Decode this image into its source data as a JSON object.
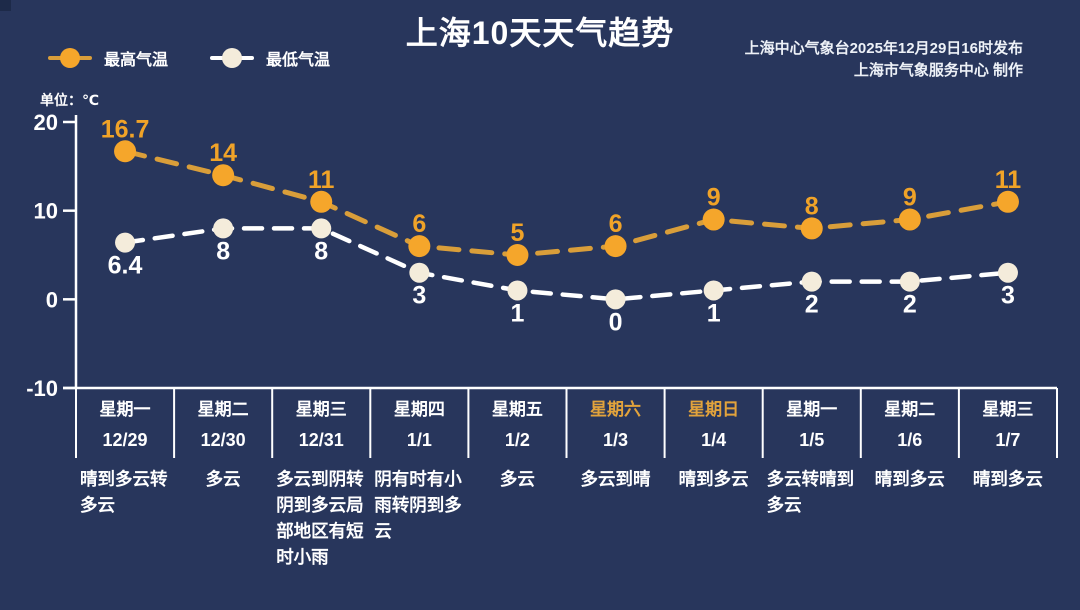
{
  "header": {
    "title": "上海10天天气趋势",
    "source_line1": "上海中心气象台2025年12月29日16时发布",
    "source_line2": "上海市气象服务中心  制作",
    "unit_label": "单位：℃",
    "legend": [
      {
        "label": "最高气温",
        "color": "#F5A62B"
      },
      {
        "label": "最低气温",
        "color": "#F4ECDB"
      }
    ]
  },
  "chart_data": {
    "type": "line",
    "title": "上海10天天气趋势",
    "categories": [
      "12/29",
      "12/30",
      "12/31",
      "1/1",
      "1/2",
      "1/3",
      "1/4",
      "1/5",
      "1/6",
      "1/7"
    ],
    "series": [
      {
        "name": "最高气温",
        "values": [
          16.7,
          14,
          11,
          6,
          5,
          6,
          9,
          8,
          9,
          11
        ],
        "dot_color": "#F5A62B",
        "line_color": "#D99E3A",
        "label_color": "#F0A328"
      },
      {
        "name": "最低气温",
        "values": [
          6.4,
          8,
          8,
          3,
          1,
          0,
          1,
          2,
          2,
          3
        ],
        "dot_color": "#F4ECDB",
        "line_color": "#FFFFFF",
        "label_color": "#FFFFFF"
      }
    ],
    "ylabel": "单位：℃",
    "yticks": [
      20,
      10,
      0,
      -10
    ],
    "ylim": [
      -10,
      20
    ],
    "grid": false,
    "line_style": "dashed",
    "legend_position": "top-left"
  },
  "forecast": {
    "columns": [
      {
        "day": "星期一",
        "date": "12/29",
        "weather": "晴到多云转多云",
        "highlight": false
      },
      {
        "day": "星期二",
        "date": "12/30",
        "weather": "多云",
        "highlight": false
      },
      {
        "day": "星期三",
        "date": "12/31",
        "weather": "多云到阴转阴到多云局部地区有短时小雨",
        "highlight": false
      },
      {
        "day": "星期四",
        "date": "1/1",
        "weather": "阴有时有小雨转阴到多云",
        "highlight": false
      },
      {
        "day": "星期五",
        "date": "1/2",
        "weather": "多云",
        "highlight": false
      },
      {
        "day": "星期六",
        "date": "1/3",
        "weather": "多云到晴",
        "highlight": true
      },
      {
        "day": "星期日",
        "date": "1/4",
        "weather": "晴到多云",
        "highlight": true
      },
      {
        "day": "星期一",
        "date": "1/5",
        "weather": "多云转晴到多云",
        "highlight": false
      },
      {
        "day": "星期二",
        "date": "1/6",
        "weather": "晴到多云",
        "highlight": false
      },
      {
        "day": "星期三",
        "date": "1/7",
        "weather": "晴到多云",
        "highlight": false
      }
    ]
  },
  "colors": {
    "background": "#28365C",
    "corner_mark": "#1D2A49",
    "axis": "#FFFFFF",
    "tick_label": "#FFFFFF",
    "divider": "#FFFFFF",
    "weekend_day": "#E2A33C",
    "max_temp": "#F5A62B",
    "min_temp": "#F4ECDB"
  }
}
